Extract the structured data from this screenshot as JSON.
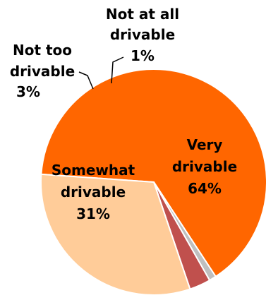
{
  "chart_data": {
    "type": "pie",
    "slices": [
      {
        "label_lines": [
          "Very",
          "drivable"
        ],
        "value": 64,
        "value_text": "64%",
        "color": "#FF6600"
      },
      {
        "label_lines": [
          "Not at all",
          "drivable"
        ],
        "value": 1,
        "value_text": "1%",
        "color": "#BFBFBF"
      },
      {
        "label_lines": [
          "Not too",
          "drivable"
        ],
        "value": 3,
        "value_text": "3%",
        "color": "#C0504D"
      },
      {
        "label_lines": [
          "Somewhat",
          "drivable"
        ],
        "value": 31,
        "value_text": "31%",
        "color": "#FFCC99"
      }
    ],
    "legend": false
  }
}
